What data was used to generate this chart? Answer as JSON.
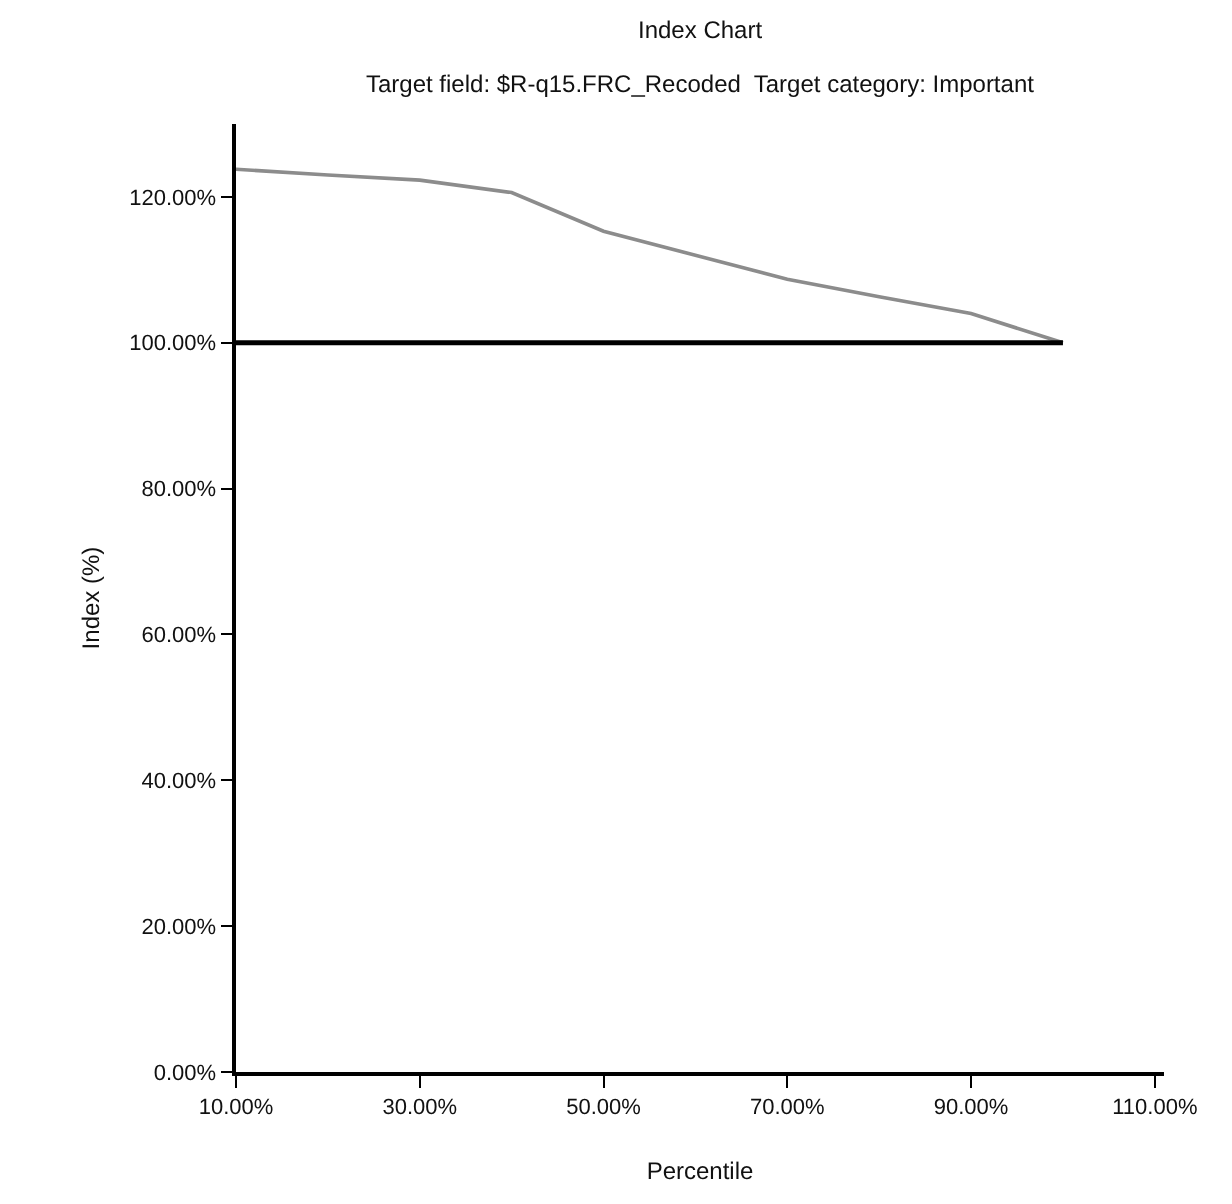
{
  "chart_data": {
    "type": "line",
    "title": "Index Chart",
    "subtitle": "Target field: $R-q15.FRC_Recoded  Target category: Important",
    "xlabel": "Percentile",
    "ylabel": "Index (%)",
    "series": [
      {
        "color": "#8c8c8c",
        "x": [
          10,
          20,
          30,
          40,
          50,
          60,
          70,
          80,
          90,
          100
        ],
        "values": [
          123.8,
          123.0,
          122.3,
          120.6,
          115.3,
          112.0,
          108.7,
          106.3,
          104.0,
          100
        ]
      },
      {
        "color": "#000000",
        "x": [
          10,
          100
        ],
        "values": [
          100,
          100
        ]
      }
    ],
    "xlim": [
      10,
      111
    ],
    "xticks": [
      {
        "value": 10,
        "label": "10.00%"
      },
      {
        "value": 30,
        "label": "30.00%"
      },
      {
        "value": 50,
        "label": "50.00%"
      },
      {
        "value": 70,
        "label": "70.00%"
      },
      {
        "value": 90,
        "label": "90.00%"
      },
      {
        "value": 110,
        "label": "110.00%"
      }
    ],
    "ylim": [
      0,
      130
    ],
    "yticks": [
      {
        "value": 0,
        "label": "0.00%"
      },
      {
        "value": 20,
        "label": "20.00%"
      },
      {
        "value": 40,
        "label": "40.00%"
      },
      {
        "value": 60,
        "label": "60.00%"
      },
      {
        "value": 80,
        "label": "80.00%"
      },
      {
        "value": 100,
        "label": "100.00%"
      },
      {
        "value": 120,
        "label": "120.00%"
      }
    ],
    "marker": "none",
    "line_style": "solid"
  }
}
